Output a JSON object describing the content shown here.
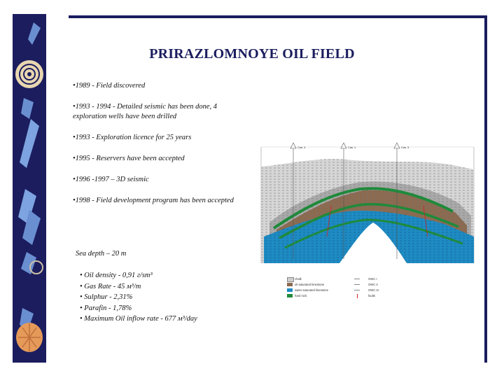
{
  "slide": {
    "title": "PRIRAZLOMNOYE OIL FIELD"
  },
  "facts": [
    "•1989 - Field discovered",
    "•1993 - 1994 - Detailed seismic has been done, 4 exploration wells have been drilled",
    "•1993 - Exploration licence for 25 years",
    "•1995 - Reservers have been accepted",
    "•1996 -1997 – 3D seismic",
    "•1998 - Field development program has been accepted"
  ],
  "sea_depth": "Sea depth – 20 m",
  "properties": [
    "• Oil density - 0,91 г/sm³",
    "• Gas Rate - 45 м³/т",
    "• Sulphur - 2,31%",
    "• Parafin - 1,78%",
    "• Maximum Oil inflow rate - 677 м³/day"
  ],
  "cross_section": {
    "wells": [
      "Скв. 4",
      "Скв. 1",
      "Скв. 3"
    ],
    "legend": [
      {
        "label": "chalk",
        "color": "#cfcfcf"
      },
      {
        "label": "oil-saturated limestone",
        "color": "#8b6a4f"
      },
      {
        "label": "water saturated limestone",
        "color": "#1e8bc3"
      },
      {
        "label": "hard rock",
        "color": "#1f8a3b"
      },
      {
        "label": "OWC I",
        "color": "#888888"
      },
      {
        "label": "OWC II",
        "color": "#888888"
      },
      {
        "label": "OWC III",
        "color": "#888888"
      },
      {
        "label": "faults",
        "color": "#cc2222"
      }
    ],
    "colors": {
      "chalk": "#d6d6d6",
      "dark_chalk": "#a9a9a9",
      "oil": "#8b6a4f",
      "water": "#1e8bc3",
      "hard_rock": "#1f8a3b"
    }
  }
}
